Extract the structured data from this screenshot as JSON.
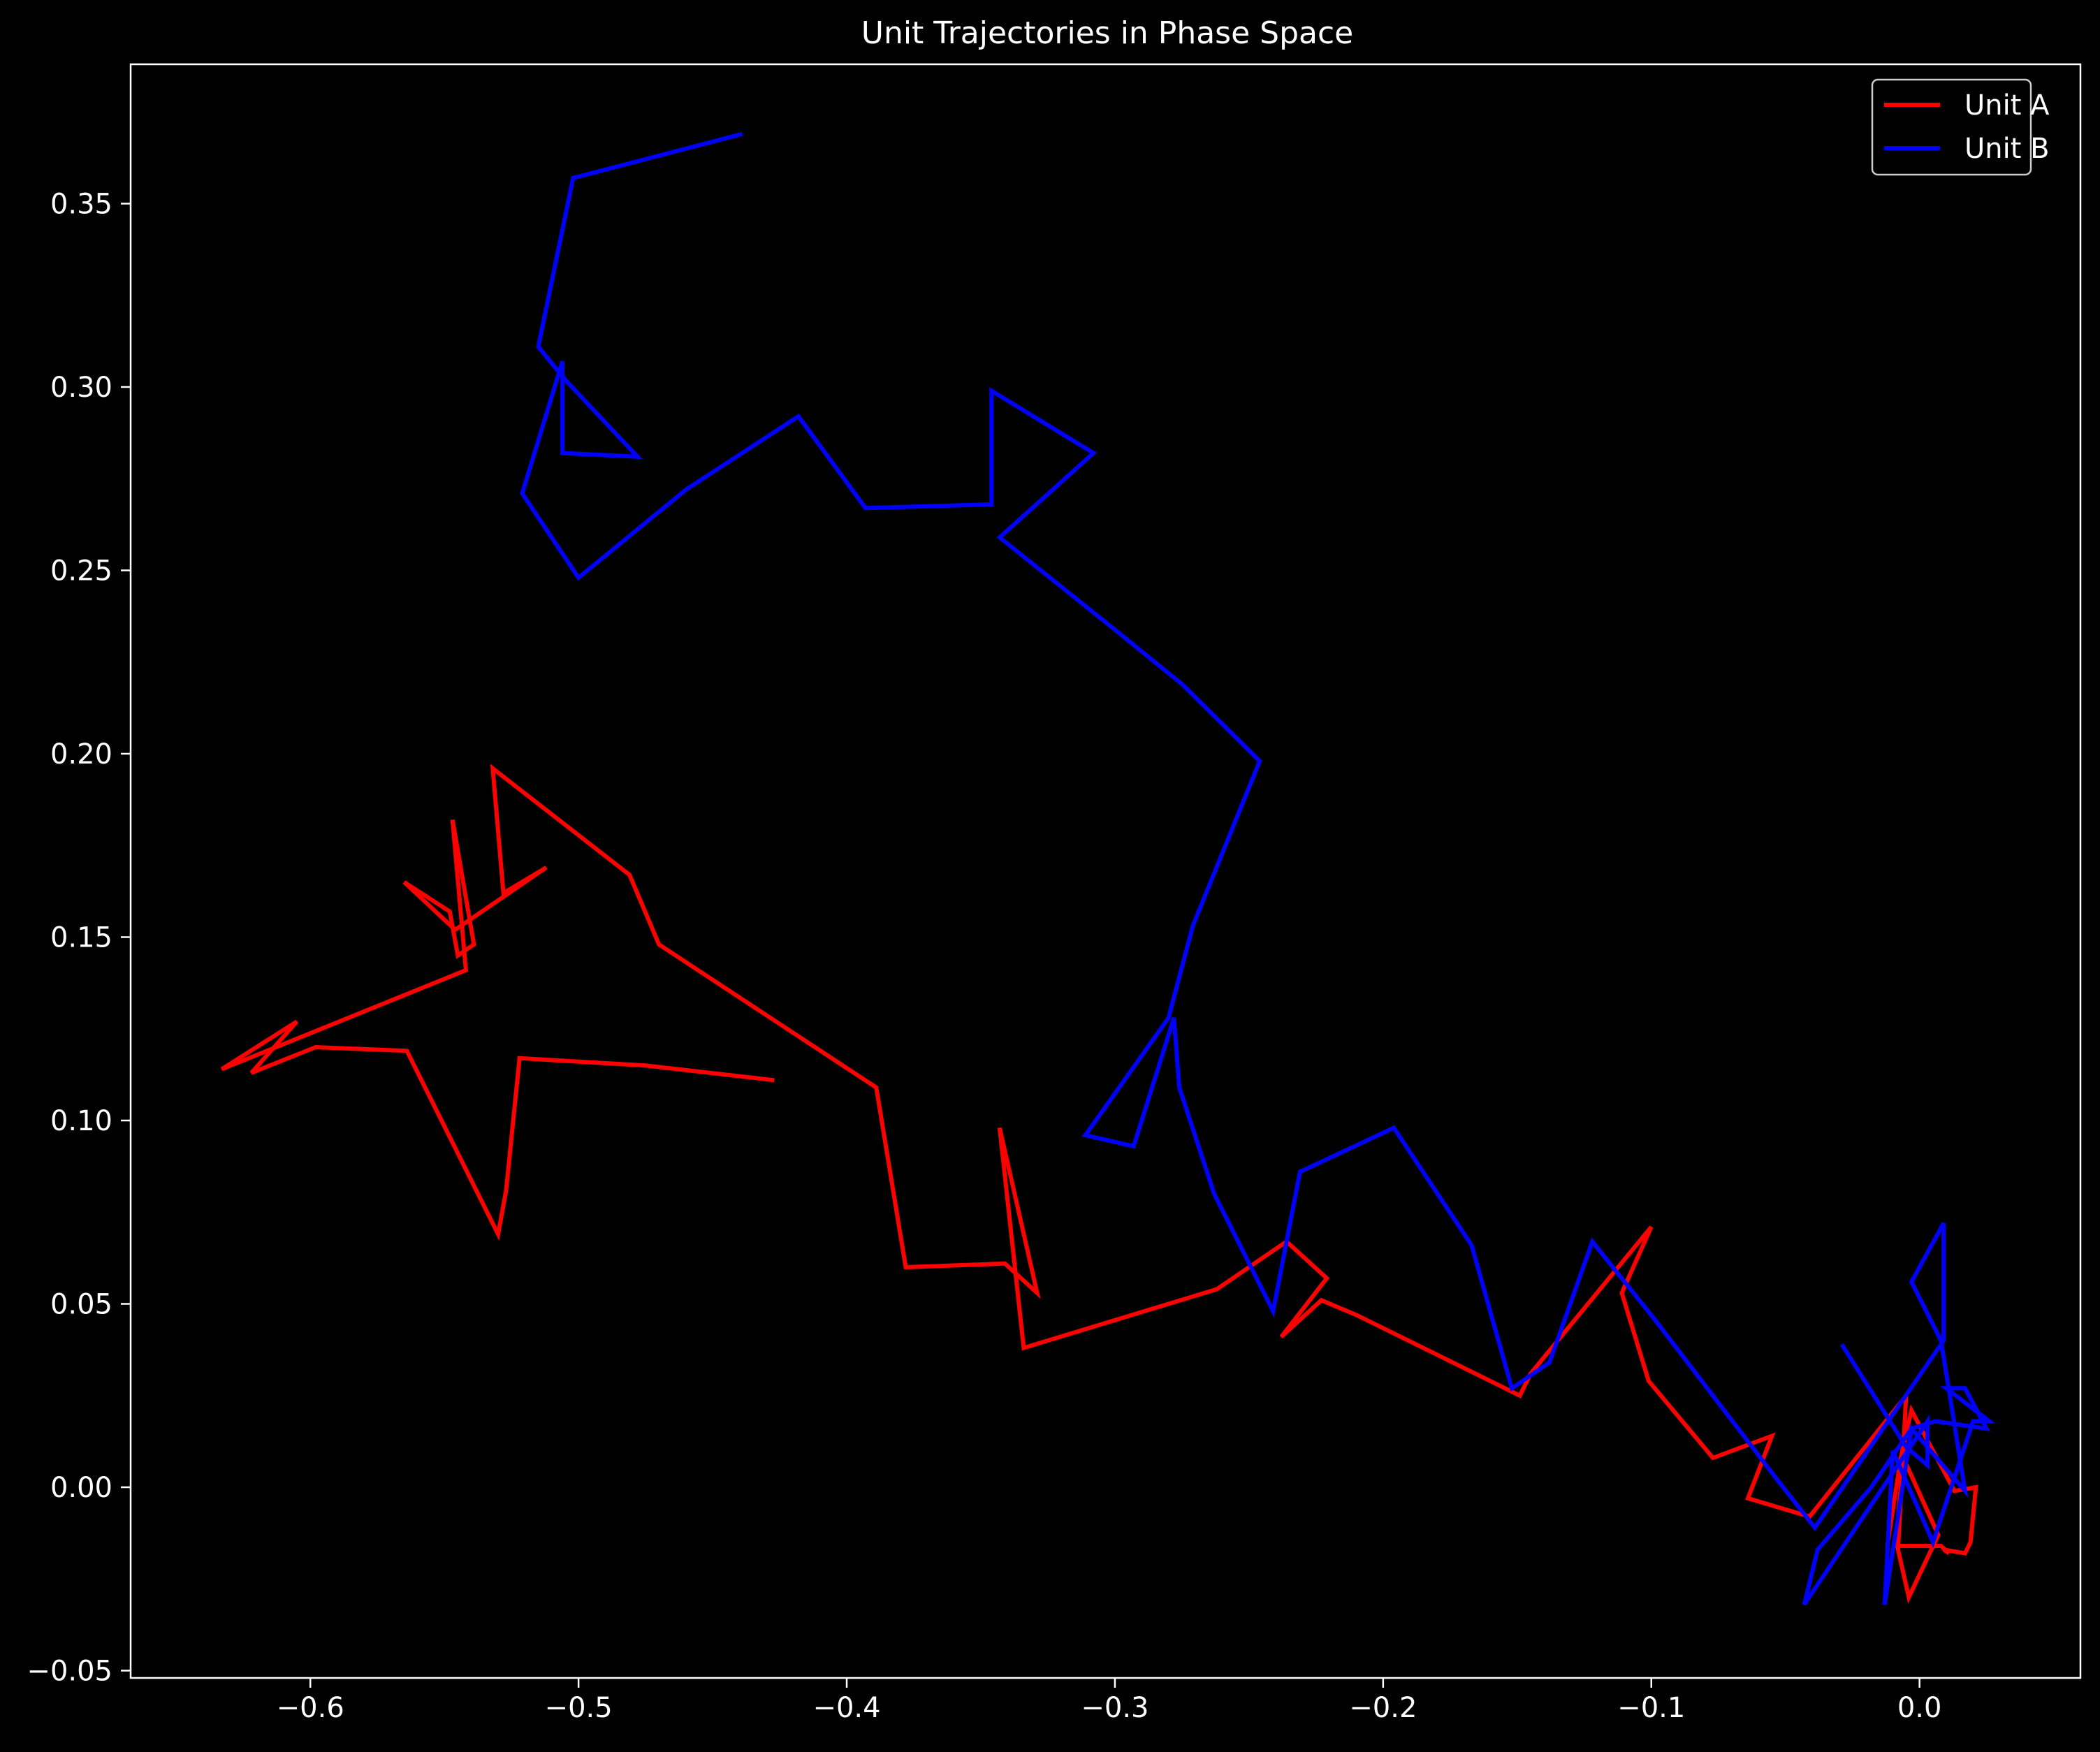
{
  "chart_data": {
    "type": "line",
    "title": "Unit Trajectories in Phase Space",
    "xlabel": "",
    "ylabel": "",
    "xlim": [
      -0.667,
      0.06
    ],
    "ylim": [
      -0.052,
      0.388
    ],
    "x_ticks": [
      -0.6,
      -0.5,
      -0.4,
      -0.3,
      -0.2,
      -0.1,
      0.0
    ],
    "x_tick_labels": [
      "−0.6",
      "−0.5",
      "−0.4",
      "−0.3",
      "−0.2",
      "−0.1",
      "0.0"
    ],
    "y_ticks": [
      -0.05,
      0.0,
      0.05,
      0.1,
      0.15,
      0.2,
      0.25,
      0.3,
      0.35
    ],
    "y_tick_labels": [
      "−0.05",
      "0.00",
      "0.05",
      "0.10",
      "0.15",
      "0.20",
      "0.25",
      "0.30",
      "0.35"
    ],
    "grid": false,
    "legend_position": "top-right",
    "background": "#000000",
    "foreground": "#ffffff",
    "series": [
      {
        "name": "Unit A",
        "color": "#ff0000",
        "points": [
          [
            -0.427,
            0.111
          ],
          [
            -0.475,
            0.115
          ],
          [
            -0.522,
            0.117
          ],
          [
            -0.527,
            0.081
          ],
          [
            -0.53,
            0.069
          ],
          [
            -0.564,
            0.119
          ],
          [
            -0.598,
            0.12
          ],
          [
            -0.622,
            0.113
          ],
          [
            -0.605,
            0.127
          ],
          [
            -0.633,
            0.114
          ],
          [
            -0.542,
            0.141
          ],
          [
            -0.547,
            0.182
          ],
          [
            -0.539,
            0.148
          ],
          [
            -0.545,
            0.145
          ],
          [
            -0.548,
            0.157
          ],
          [
            -0.565,
            0.165
          ],
          [
            -0.546,
            0.152
          ],
          [
            -0.512,
            0.169
          ],
          [
            -0.528,
            0.162
          ],
          [
            -0.532,
            0.196
          ],
          [
            -0.481,
            0.167
          ],
          [
            -0.47,
            0.148
          ],
          [
            -0.389,
            0.109
          ],
          [
            -0.378,
            0.06
          ],
          [
            -0.341,
            0.061
          ],
          [
            -0.329,
            0.053
          ],
          [
            -0.343,
            0.098
          ],
          [
            -0.334,
            0.038
          ],
          [
            -0.262,
            0.054
          ],
          [
            -0.236,
            0.067
          ],
          [
            -0.221,
            0.057
          ],
          [
            -0.238,
            0.041
          ],
          [
            -0.223,
            0.051
          ],
          [
            -0.21,
            0.047
          ],
          [
            -0.149,
            0.025
          ],
          [
            -0.145,
            0.031
          ],
          [
            -0.1,
            0.071
          ],
          [
            -0.111,
            0.053
          ],
          [
            -0.101,
            0.029
          ],
          [
            -0.077,
            0.008
          ],
          [
            -0.055,
            0.014
          ],
          [
            -0.064,
            -0.003
          ],
          [
            -0.041,
            -0.008
          ],
          [
            -0.005,
            0.025
          ],
          [
            -0.008,
            -0.017
          ],
          [
            -0.004,
            -0.03
          ],
          [
            0.007,
            -0.013
          ],
          [
            -0.006,
            0.008
          ],
          [
            -0.009,
            -0.016
          ],
          [
            0.008,
            -0.016
          ],
          [
            0.011,
            -0.018
          ],
          [
            0.009,
            -0.017
          ],
          [
            0.017,
            -0.018
          ],
          [
            0.019,
            -0.015
          ],
          [
            0.021,
            0.0
          ],
          [
            0.013,
            -0.001
          ],
          [
            -0.003,
            0.021
          ],
          [
            -0.007,
            0.008
          ],
          [
            -0.012,
            -0.016
          ]
        ]
      },
      {
        "name": "Unit B",
        "color": "#0000ff",
        "points": [
          [
            -0.439,
            0.369
          ],
          [
            -0.502,
            0.357
          ],
          [
            -0.515,
            0.311
          ],
          [
            -0.505,
            0.302
          ],
          [
            -0.478,
            0.281
          ],
          [
            -0.506,
            0.282
          ],
          [
            -0.506,
            0.307
          ],
          [
            -0.521,
            0.271
          ],
          [
            -0.5,
            0.248
          ],
          [
            -0.46,
            0.272
          ],
          [
            -0.418,
            0.292
          ],
          [
            -0.393,
            0.267
          ],
          [
            -0.346,
            0.268
          ],
          [
            -0.346,
            0.299
          ],
          [
            -0.308,
            0.282
          ],
          [
            -0.343,
            0.259
          ],
          [
            -0.302,
            0.235
          ],
          [
            -0.275,
            0.219
          ],
          [
            -0.246,
            0.198
          ],
          [
            -0.271,
            0.153
          ],
          [
            -0.28,
            0.128
          ],
          [
            -0.311,
            0.096
          ],
          [
            -0.293,
            0.093
          ],
          [
            -0.278,
            0.128
          ],
          [
            -0.276,
            0.109
          ],
          [
            -0.263,
            0.08
          ],
          [
            -0.241,
            0.048
          ],
          [
            -0.231,
            0.086
          ],
          [
            -0.196,
            0.098
          ],
          [
            -0.167,
            0.066
          ],
          [
            -0.152,
            0.027
          ],
          [
            -0.138,
            0.034
          ],
          [
            -0.122,
            0.067
          ],
          [
            -0.099,
            0.046
          ],
          [
            -0.053,
            0.002
          ],
          [
            -0.039,
            -0.011
          ],
          [
            0.009,
            0.04
          ],
          [
            0.009,
            0.072
          ],
          [
            -0.003,
            0.056
          ],
          [
            0.008,
            0.04
          ],
          [
            0.017,
            -0.001
          ],
          [
            -0.003,
            0.016
          ],
          [
            -0.013,
            -0.032
          ],
          [
            -0.01,
            0.01
          ],
          [
            0.005,
            -0.015
          ],
          [
            0.02,
            0.018
          ],
          [
            0.026,
            0.018
          ],
          [
            0.01,
            0.027
          ],
          [
            0.017,
            0.027
          ],
          [
            0.025,
            0.016
          ],
          [
            0.006,
            0.018
          ],
          [
            -0.003,
            0.016
          ],
          [
            -0.018,
            0.0
          ],
          [
            -0.038,
            -0.017
          ],
          [
            -0.043,
            -0.032
          ],
          [
            -0.032,
            -0.02
          ],
          [
            0.003,
            0.018
          ],
          [
            0.003,
            0.006
          ],
          [
            -0.005,
            0.011
          ],
          [
            -0.029,
            0.039
          ]
        ]
      }
    ]
  }
}
